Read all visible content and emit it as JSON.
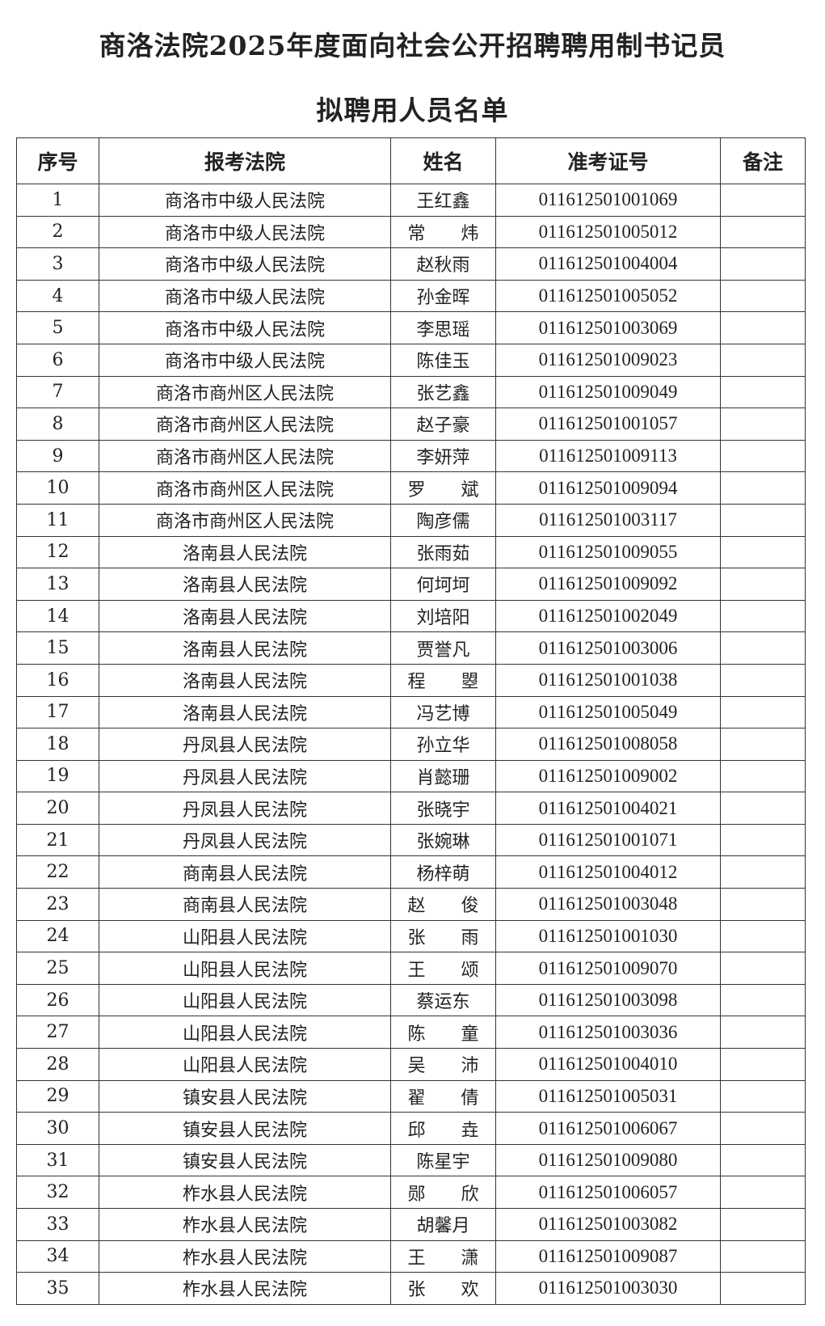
{
  "title_line1": "商洛法院2025年度面向社会公开招聘聘用制书记员",
  "title_line2": "拟聘用人员名单",
  "headers": [
    "序号",
    "报考法院",
    "姓名",
    "准考证号",
    "备注"
  ],
  "rows": [
    [
      "1",
      "商洛市中级人民法院",
      "王红鑫",
      "011612501001069",
      ""
    ],
    [
      "2",
      "商洛市中级人民法院",
      "常　　炜",
      "011612501005012",
      ""
    ],
    [
      "3",
      "商洛市中级人民法院",
      "赵秋雨",
      "011612501004004",
      ""
    ],
    [
      "4",
      "商洛市中级人民法院",
      "孙金晖",
      "011612501005052",
      ""
    ],
    [
      "5",
      "商洛市中级人民法院",
      "李思瑶",
      "011612501003069",
      ""
    ],
    [
      "6",
      "商洛市中级人民法院",
      "陈佳玉",
      "011612501009023",
      ""
    ],
    [
      "7",
      "商洛市商州区人民法院",
      "张艺鑫",
      "011612501009049",
      ""
    ],
    [
      "8",
      "商洛市商州区人民法院",
      "赵子豪",
      "011612501001057",
      ""
    ],
    [
      "9",
      "商洛市商州区人民法院",
      "李妍萍",
      "011612501009113",
      ""
    ],
    [
      "10",
      "商洛市商州区人民法院",
      "罗　　斌",
      "011612501009094",
      ""
    ],
    [
      "11",
      "商洛市商州区人民法院",
      "陶彦儒",
      "011612501003117",
      ""
    ],
    [
      "12",
      "洛南县人民法院",
      "张雨茹",
      "011612501009055",
      ""
    ],
    [
      "13",
      "洛南县人民法院",
      "何坷坷",
      "011612501009092",
      ""
    ],
    [
      "14",
      "洛南县人民法院",
      "刘培阳",
      "011612501002049",
      ""
    ],
    [
      "15",
      "洛南县人民法院",
      "贾誉凡",
      "011612501003006",
      ""
    ],
    [
      "16",
      "洛南县人民法院",
      "程　　曌",
      "011612501001038",
      ""
    ],
    [
      "17",
      "洛南县人民法院",
      "冯艺博",
      "011612501005049",
      ""
    ],
    [
      "18",
      "丹凤县人民法院",
      "孙立华",
      "011612501008058",
      ""
    ],
    [
      "19",
      "丹凤县人民法院",
      "肖懿珊",
      "011612501009002",
      ""
    ],
    [
      "20",
      "丹凤县人民法院",
      "张晓宇",
      "011612501004021",
      ""
    ],
    [
      "21",
      "丹凤县人民法院",
      "张婉琳",
      "011612501001071",
      ""
    ],
    [
      "22",
      "商南县人民法院",
      "杨梓萌",
      "011612501004012",
      ""
    ],
    [
      "23",
      "商南县人民法院",
      "赵　　俊",
      "011612501003048",
      ""
    ],
    [
      "24",
      "山阳县人民法院",
      "张　　雨",
      "011612501001030",
      ""
    ],
    [
      "25",
      "山阳县人民法院",
      "王　　颂",
      "011612501009070",
      ""
    ],
    [
      "26",
      "山阳县人民法院",
      "蔡运东",
      "011612501003098",
      ""
    ],
    [
      "27",
      "山阳县人民法院",
      "陈　　童",
      "011612501003036",
      ""
    ],
    [
      "28",
      "山阳县人民法院",
      "吴　　沛",
      "011612501004010",
      ""
    ],
    [
      "29",
      "镇安县人民法院",
      "翟　　倩",
      "011612501005031",
      ""
    ],
    [
      "30",
      "镇安县人民法院",
      "邱　　垚",
      "011612501006067",
      ""
    ],
    [
      "31",
      "镇安县人民法院",
      "陈星宇",
      "011612501009080",
      ""
    ],
    [
      "32",
      "柞水县人民法院",
      "郧　　欣",
      "011612501006057",
      ""
    ],
    [
      "33",
      "柞水县人民法院",
      "胡馨月",
      "011612501003082",
      ""
    ],
    [
      "34",
      "柞水县人民法院",
      "王　　潇",
      "011612501009087",
      ""
    ],
    [
      "35",
      "柞水县人民法院",
      "张　　欢",
      "011612501003030",
      ""
    ]
  ]
}
